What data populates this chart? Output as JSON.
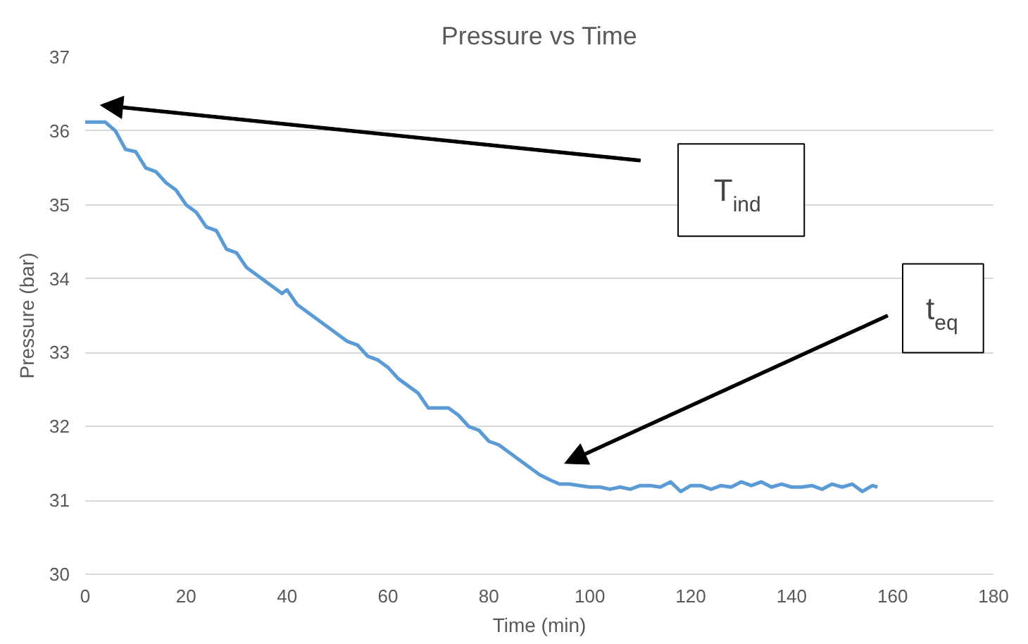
{
  "chart_data": {
    "type": "line",
    "title": "Pressure vs Time",
    "xlabel": "Time (min)",
    "ylabel": "Pressure (bar)",
    "x": [
      0,
      4,
      6,
      8,
      10,
      12,
      14,
      16,
      18,
      20,
      22,
      24,
      26,
      28,
      30,
      32,
      34,
      36,
      38,
      39,
      40,
      42,
      44,
      46,
      48,
      50,
      52,
      54,
      56,
      58,
      60,
      62,
      64,
      66,
      68,
      70,
      72,
      74,
      76,
      78,
      80,
      82,
      84,
      86,
      88,
      90,
      92,
      94,
      96,
      98,
      100,
      102,
      104,
      106,
      108,
      110,
      112,
      114,
      116,
      118,
      120,
      122,
      124,
      126,
      128,
      130,
      132,
      134,
      136,
      138,
      140,
      142,
      144,
      146,
      148,
      150,
      152,
      154,
      156,
      157
    ],
    "series": [
      {
        "color": "#5b9bd5",
        "values": [
          36.12,
          36.12,
          36.0,
          35.75,
          35.72,
          35.5,
          35.45,
          35.3,
          35.2,
          35.0,
          34.9,
          34.7,
          34.65,
          34.4,
          34.35,
          34.15,
          34.05,
          33.95,
          33.85,
          33.8,
          33.85,
          33.65,
          33.55,
          33.45,
          33.35,
          33.25,
          33.15,
          33.1,
          32.95,
          32.9,
          32.8,
          32.65,
          32.55,
          32.45,
          32.25,
          32.25,
          32.25,
          32.15,
          32.0,
          31.95,
          31.8,
          31.75,
          31.65,
          31.55,
          31.45,
          31.35,
          31.28,
          31.22,
          31.22,
          31.2,
          31.18,
          31.18,
          31.15,
          31.18,
          31.15,
          31.2,
          31.2,
          31.18,
          31.25,
          31.12,
          31.2,
          31.2,
          31.15,
          31.2,
          31.18,
          31.25,
          31.2,
          31.25,
          31.18,
          31.22,
          31.18,
          31.18,
          31.2,
          31.15,
          31.22,
          31.18,
          31.22,
          31.12,
          31.2,
          31.18
        ]
      }
    ],
    "xlim": [
      0,
      180
    ],
    "xticks": [
      0,
      20,
      40,
      60,
      80,
      100,
      120,
      140,
      160,
      180
    ],
    "ylim": [
      30,
      37
    ],
    "yticks": [
      30,
      31,
      32,
      33,
      34,
      35,
      36,
      37
    ],
    "grid": "y",
    "marker": "none",
    "line_style": "solid",
    "annotations": [
      "T$_{ind}$",
      "t$_{eq}$"
    ]
  }
}
